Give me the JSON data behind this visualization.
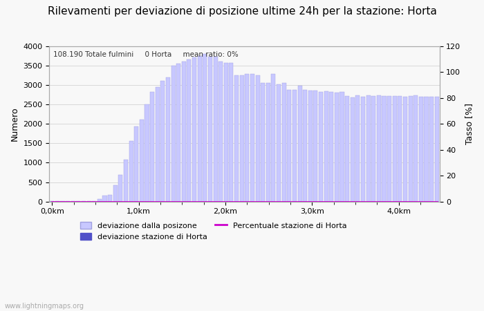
{
  "title": "Rilevamenti per deviazione di posizione ultime 24h per la stazione: Horta",
  "subtitle": "108.190 Totale fulmini     0 Horta     mean ratio: 0%",
  "ylabel_left": "Numero",
  "ylabel_right": "Tasso [%]",
  "watermark": "www.lightningmaps.org",
  "bar_values": [
    5,
    10,
    10,
    10,
    10,
    15,
    10,
    10,
    10,
    70,
    150,
    170,
    420,
    690,
    1080,
    1560,
    1940,
    2120,
    2500,
    2820,
    2950,
    3110,
    3200,
    3510,
    3550,
    3600,
    3660,
    3720,
    3750,
    3800,
    3730,
    3730,
    3600,
    3570,
    3570,
    3250,
    3250,
    3280,
    3280,
    3250,
    3060,
    3050,
    3280,
    3020,
    3060,
    2880,
    2880,
    2990,
    2880,
    2860,
    2860,
    2830,
    2840,
    2820,
    2800,
    2820,
    2720,
    2690,
    2740,
    2700,
    2730,
    2720,
    2740,
    2710,
    2710,
    2720,
    2720,
    2700,
    2720,
    2730,
    2700,
    2700,
    2700,
    2700
  ],
  "horta_values": [
    0,
    0,
    0,
    0,
    0,
    0,
    0,
    0,
    0,
    0,
    0,
    0,
    0,
    0,
    0,
    0,
    0,
    0,
    0,
    0,
    0,
    0,
    0,
    0,
    0,
    0,
    0,
    0,
    0,
    0,
    0,
    0,
    0,
    0,
    0,
    0,
    0,
    0,
    0,
    0,
    0,
    0,
    0,
    0,
    0,
    0,
    0,
    0,
    0,
    0,
    0,
    0,
    0,
    0,
    0,
    0,
    0,
    0,
    0,
    0,
    0,
    0,
    0,
    0,
    0,
    0,
    0,
    0,
    0,
    0,
    0,
    0,
    0,
    0
  ],
  "ratio_values": [
    0,
    0,
    0,
    0,
    0,
    0,
    0,
    0,
    0,
    0,
    0,
    0,
    0,
    0,
    0,
    0,
    0,
    0,
    0,
    0,
    0,
    0,
    0,
    0,
    0,
    0,
    0,
    0,
    0,
    0,
    0,
    0,
    0,
    0,
    0,
    0,
    0,
    0,
    0,
    0,
    0,
    0,
    0,
    0,
    0,
    0,
    0,
    0,
    0,
    0,
    0,
    0,
    0,
    0,
    0,
    0,
    0,
    0,
    0,
    0,
    0,
    0,
    0,
    0,
    0,
    0,
    0,
    0,
    0,
    0,
    0,
    0,
    0,
    0
  ],
  "ylim_left": [
    0,
    4000
  ],
  "ylim_right": [
    0,
    120
  ],
  "yticks_left": [
    0,
    500,
    1000,
    1500,
    2000,
    2500,
    3000,
    3500,
    4000
  ],
  "yticks_right": [
    0,
    20,
    40,
    60,
    80,
    100,
    120
  ],
  "bar_color_light": "#c8c8ff",
  "bar_color_dark": "#5050c8",
  "bar_edge_color": "#a0a0e0",
  "line_color": "#cc00cc",
  "background_color": "#f8f8f8",
  "grid_color": "#cccccc",
  "title_fontsize": 11,
  "label_fontsize": 9,
  "tick_fontsize": 8
}
